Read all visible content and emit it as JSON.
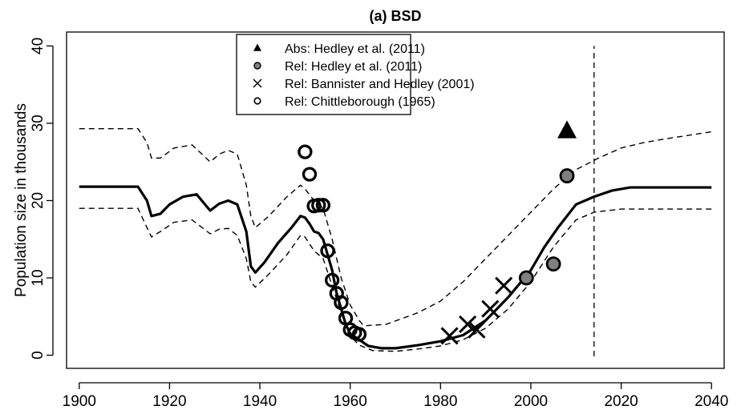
{
  "chart_data": {
    "type": "line",
    "title": "(a) BSD",
    "y_label": "Population size in thousands",
    "xlim": [
      1897.2,
      2042.8
    ],
    "ylim": [
      -1.7,
      41.8
    ],
    "xticks": [
      1900,
      1920,
      1940,
      1960,
      1980,
      2000,
      2020,
      2040
    ],
    "yticks": [
      0,
      10,
      20,
      30,
      40
    ],
    "vline": 2014,
    "series": [
      {
        "kind": "line",
        "style": "solid",
        "color": "#000000",
        "x": [
          1900,
          1913,
          1915,
          1916,
          1918,
          1920,
          1923,
          1926,
          1929,
          1931,
          1933,
          1935,
          1937,
          1938,
          1939,
          1941,
          1944,
          1947,
          1949,
          1950,
          1951,
          1952,
          1953,
          1954,
          1955,
          1956,
          1957,
          1958,
          1959,
          1960,
          1962,
          1964,
          1967,
          1970,
          1975,
          1980,
          1985,
          1990,
          1995,
          2000,
          2003,
          2006,
          2010,
          2014,
          2018,
          2022,
          2040
        ],
        "values": [
          21.8,
          21.8,
          20,
          18,
          18.3,
          19.5,
          20.5,
          20.8,
          18.7,
          19.6,
          20,
          19.5,
          16,
          11.5,
          10.7,
          12,
          14.5,
          16.5,
          18,
          17.8,
          17,
          16,
          15.8,
          15,
          13,
          11,
          8,
          6,
          4,
          2.8,
          2,
          1.2,
          0.9,
          0.9,
          1.3,
          1.8,
          2.6,
          4.5,
          7.5,
          11,
          14,
          16.5,
          19.5,
          20.5,
          21.3,
          21.7,
          21.7
        ]
      },
      {
        "kind": "line",
        "style": "dashed",
        "color": "#000000",
        "x": [
          1900,
          1913,
          1915,
          1916,
          1918,
          1921,
          1925,
          1929,
          1931,
          1933,
          1935,
          1937,
          1938,
          1939,
          1942,
          1946,
          1949,
          1950,
          1952,
          1954,
          1956,
          1958,
          1960,
          1962,
          1963,
          1968,
          1975,
          1980,
          1985,
          1990,
          1995,
          2000,
          2005,
          2010,
          2015,
          2020,
          2025,
          2030,
          2040
        ],
        "values": [
          29.3,
          29.3,
          27.5,
          25.5,
          25.5,
          26.8,
          27.2,
          25,
          26,
          26.5,
          26,
          22,
          18,
          16.5,
          18,
          20.5,
          22,
          21.5,
          20,
          19,
          15,
          10,
          6.5,
          4.5,
          3.8,
          4,
          5.5,
          7,
          9.5,
          12.5,
          15.5,
          18.5,
          21.5,
          24,
          25.5,
          26.8,
          27.5,
          28,
          28.9
        ]
      },
      {
        "kind": "line",
        "style": "dashed",
        "color": "#000000",
        "x": [
          1900,
          1913,
          1915,
          1916,
          1918,
          1921,
          1925,
          1929,
          1931,
          1933,
          1935,
          1937,
          1938,
          1939,
          1942,
          1946,
          1949,
          1950,
          1952,
          1954,
          1956,
          1958,
          1960,
          1962,
          1965,
          1970,
          1975,
          1980,
          1985,
          1990,
          1995,
          2000,
          2005,
          2010,
          2014,
          2020,
          2040
        ],
        "values": [
          19,
          19,
          16.5,
          15.3,
          16,
          17.2,
          17.5,
          15.7,
          16.3,
          16.4,
          15.5,
          12.5,
          9.5,
          8.8,
          10.5,
          13,
          15.5,
          15.3,
          13.5,
          12.5,
          9,
          5.5,
          2.5,
          1.3,
          0.6,
          0.5,
          0.8,
          1.2,
          2,
          3.5,
          6,
          9.5,
          14,
          17.5,
          18.5,
          18.9,
          18.9
        ]
      },
      {
        "kind": "scatter",
        "marker": "triangle",
        "name": "Abs: Hedley et al. (2011)",
        "color": "#000000",
        "x": [
          2008
        ],
        "values": [
          29
        ]
      },
      {
        "kind": "scatter",
        "marker": "filled-circle",
        "name": "Rel: Hedley et al. (2011)",
        "color": "#808080",
        "x": [
          2008,
          1999,
          2005
        ],
        "values": [
          23.2,
          10,
          11.8
        ]
      },
      {
        "kind": "scatter",
        "marker": "cross",
        "name": "Rel: Bannister and Hedley (2001)",
        "color": "#000000",
        "x": [
          1982,
          1986,
          1988,
          1991,
          1994
        ],
        "values": [
          2.5,
          4,
          3.3,
          6,
          9
        ]
      },
      {
        "kind": "scatter",
        "marker": "open-circle",
        "name": "Rel: Chittleborough (1965)",
        "color": "#000000",
        "x": [
          1950,
          1951,
          1952,
          1953,
          1954,
          1955,
          1956,
          1957,
          1958,
          1959,
          1960,
          1961,
          1962
        ],
        "values": [
          26.3,
          23.4,
          19.3,
          19.4,
          19.4,
          13.5,
          9.7,
          8,
          6.8,
          4.8,
          3.3,
          2.9,
          2.7
        ]
      }
    ]
  }
}
